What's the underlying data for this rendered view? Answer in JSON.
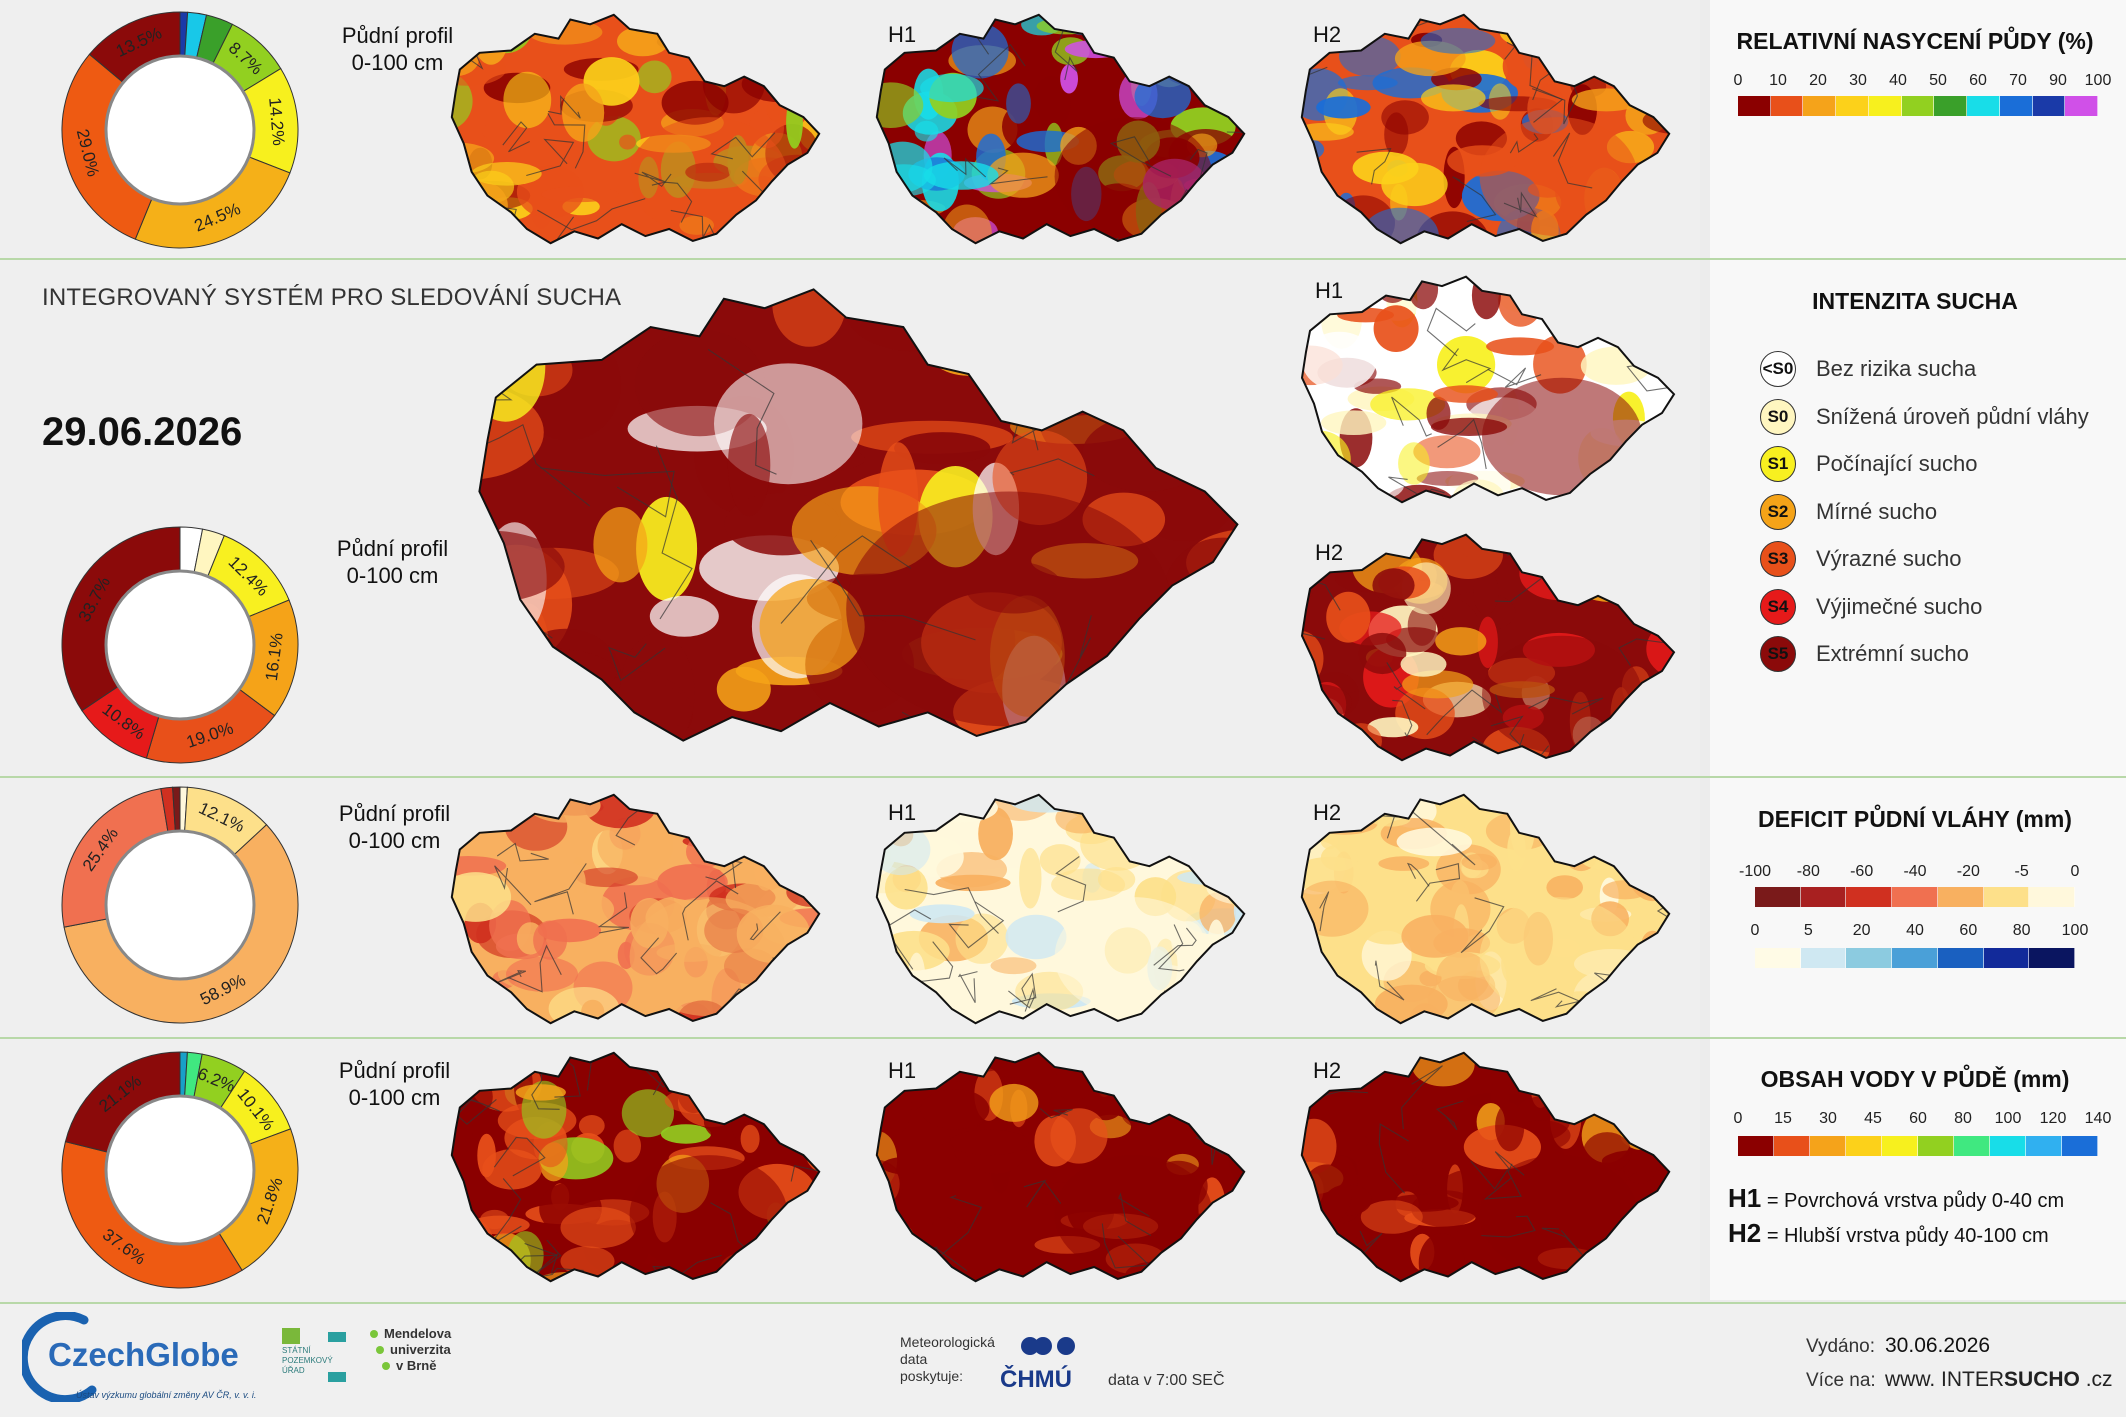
{
  "header": {
    "system_title": "INTEGROVANÝ SYSTÉM PRO SLEDOVÁNÍ SUCHA",
    "date": "29.06.2026"
  },
  "labels": {
    "profile_line1": "Půdní profil",
    "profile_line2": "0-100 cm",
    "h1": "H1",
    "h2": "H2"
  },
  "legends": {
    "saturation": {
      "title": "RELATIVNÍ NASYCENÍ PŮDY (%)",
      "ticks": [
        "0",
        "10",
        "20",
        "30",
        "40",
        "50",
        "60",
        "70",
        "90",
        "100"
      ],
      "colors": [
        "#8b0000",
        "#e8501a",
        "#f5a31a",
        "#fcd11a",
        "#f7f01e",
        "#92d020",
        "#3aa02a",
        "#18dde8",
        "#1a6ed8",
        "#1a3aa8",
        "#d050e8"
      ]
    },
    "drought": {
      "title": "INTENZITA SUCHA",
      "items": [
        {
          "code": "<S0",
          "label": "Bez rizika sucha",
          "color": "#ffffff",
          "text": "#111111"
        },
        {
          "code": "S0",
          "label": "Snížená úroveň půdní vláhy",
          "color": "#fff6c0",
          "text": "#111111"
        },
        {
          "code": "S1",
          "label": "Počínající sucho",
          "color": "#f8f020",
          "text": "#111111"
        },
        {
          "code": "S2",
          "label": "Mírné sucho",
          "color": "#f5a318",
          "text": "#111111"
        },
        {
          "code": "S3",
          "label": "Výrazné sucho",
          "color": "#e8501a",
          "text": "#111111"
        },
        {
          "code": "S4",
          "label": "Výjimečné sucho",
          "color": "#e61a1a",
          "text": "#111111"
        },
        {
          "code": "S5",
          "label": "Extrémní sucho",
          "color": "#8b0a0a",
          "text": "#111111"
        }
      ]
    },
    "deficit": {
      "title": "DEFICIT PŮDNÍ VLÁHY (mm)",
      "neg_ticks": [
        "-100",
        "-80",
        "-60",
        "-40",
        "-20",
        "-5",
        "0"
      ],
      "neg_colors": [
        "#7a1a1a",
        "#a82020",
        "#d03020",
        "#f07050",
        "#f8b060",
        "#fde08a",
        "#fff8dc"
      ],
      "pos_ticks": [
        "0",
        "5",
        "20",
        "40",
        "60",
        "80",
        "100"
      ],
      "pos_colors": [
        "#fffbe6",
        "#cfe8f2",
        "#8ccbe0",
        "#4aa0d8",
        "#1a60c0",
        "#122a9a",
        "#0a1560"
      ]
    },
    "water": {
      "title": "OBSAH VODY V PŮDĚ (mm)",
      "ticks": [
        "0",
        "15",
        "30",
        "45",
        "60",
        "80",
        "100",
        "120",
        "140"
      ],
      "colors": [
        "#8b0000",
        "#e8501a",
        "#f5a31a",
        "#fcd11a",
        "#f7f01e",
        "#92d020",
        "#40e880",
        "#18dde8",
        "#30b0f0",
        "#1a6ed8"
      ]
    }
  },
  "notes": {
    "h1_code": "H1",
    "h1_text": "= Povrchová vrstva půdy 0-40 cm",
    "h2_code": "H2",
    "h2_text": "= Hlubší vrstva půdy 40-100 cm"
  },
  "donuts": {
    "saturation": {
      "segments": [
        {
          "value": 1.0,
          "color": "#1a3aa8",
          "label": ""
        },
        {
          "value": 2.5,
          "color": "#18c8e8",
          "label": ""
        },
        {
          "value": 3.6,
          "color": "#3aa02a",
          "label": ""
        },
        {
          "value": 8.7,
          "color": "#92d020",
          "label": "8.7%"
        },
        {
          "value": 14.2,
          "color": "#f7f01e",
          "label": "14.2%"
        },
        {
          "value": 24.5,
          "color": "#f5b018",
          "label": "24.5%"
        },
        {
          "value": 29.0,
          "color": "#ee5a12",
          "label": "29.0%"
        },
        {
          "value": 13.5,
          "color": "#8b0a0a",
          "label": "13.5%"
        }
      ]
    },
    "drought": {
      "segments": [
        {
          "value": 3.0,
          "color": "#ffffff",
          "label": ""
        },
        {
          "value": 3.0,
          "color": "#fff6c0",
          "label": ""
        },
        {
          "value": 12.4,
          "color": "#f8f020",
          "label": "12.4%"
        },
        {
          "value": 16.1,
          "color": "#f5a318",
          "label": "16.1%"
        },
        {
          "value": 19.0,
          "color": "#e8501a",
          "label": "19.0%"
        },
        {
          "value": 10.8,
          "color": "#e61a1a",
          "label": "10.8%"
        },
        {
          "value": 33.7,
          "color": "#8b0a0a",
          "label": "33.7%"
        }
      ]
    },
    "deficit": {
      "segments": [
        {
          "value": 1.0,
          "color": "#fff8dc",
          "label": ""
        },
        {
          "value": 12.1,
          "color": "#fde08a",
          "label": "12.1%"
        },
        {
          "value": 58.9,
          "color": "#f8b060",
          "label": "58.9%"
        },
        {
          "value": 25.4,
          "color": "#f07050",
          "label": "25.4%"
        },
        {
          "value": 1.6,
          "color": "#d03020",
          "label": ""
        },
        {
          "value": 1.0,
          "color": "#7a1a1a",
          "label": ""
        }
      ]
    },
    "water": {
      "segments": [
        {
          "value": 1.0,
          "color": "#18a0c8",
          "label": ""
        },
        {
          "value": 2.0,
          "color": "#40e880",
          "label": ""
        },
        {
          "value": 6.2,
          "color": "#92d020",
          "label": "6.2%"
        },
        {
          "value": 10.1,
          "color": "#f7f01e",
          "label": "10.1%"
        },
        {
          "value": 21.8,
          "color": "#f5b018",
          "label": "21.8%"
        },
        {
          "value": 37.6,
          "color": "#ee5a12",
          "label": "37.6%"
        },
        {
          "value": 21.1,
          "color": "#8b0a0a",
          "label": "21.1%"
        }
      ]
    }
  },
  "footer": {
    "czechglobe": "CzechGlobe",
    "czechglobe_sub": "Ústav výzkumu globální změny AV ČR, v. v. i.",
    "spu": "STÁTNÍ POZEMKOVÝ ÚŘAD",
    "mendel_1": "Mendelova",
    "mendel_2": "univerzita",
    "mendel_3": "v Brně",
    "meteo_1": "Meteorologická",
    "meteo_2": "data",
    "meteo_3": "poskytuje:",
    "chmu": "ČHMÚ",
    "data_time": "data v 7:00 SEČ",
    "issued_label": "Vydáno:",
    "issued_date": "30.06.2026",
    "more_label": "Více na:",
    "url_prefix": "www. INTER",
    "url_bold": "SUCHO",
    "url_suffix": " .cz"
  }
}
